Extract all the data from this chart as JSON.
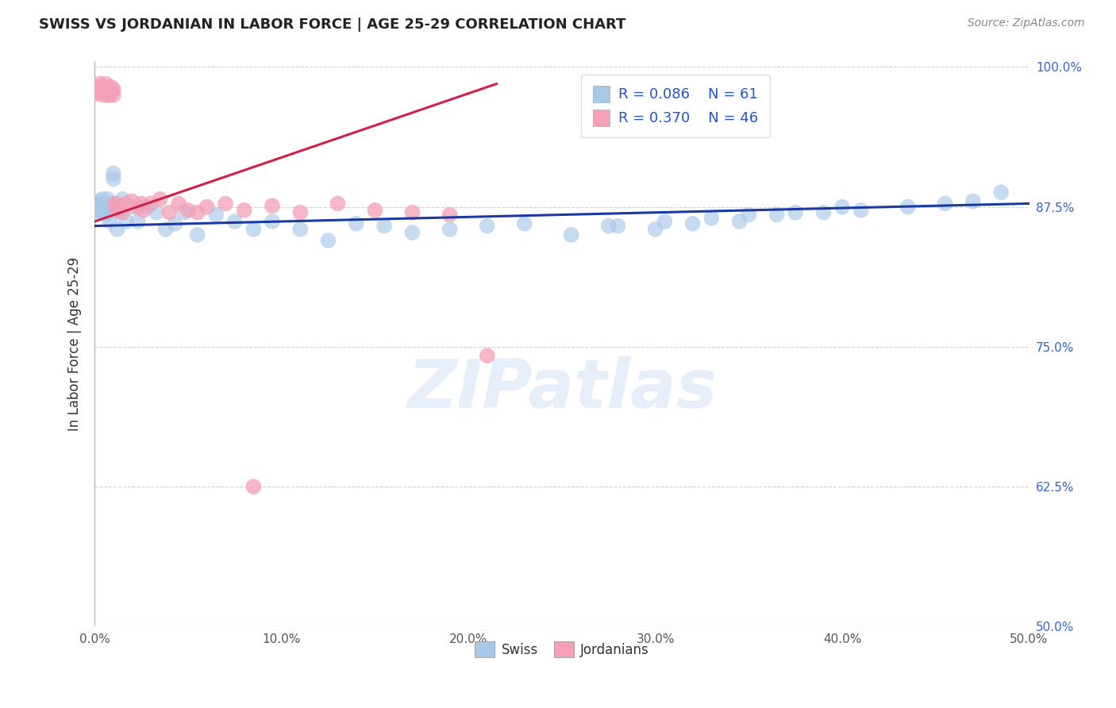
{
  "title": "SWISS VS JORDANIAN IN LABOR FORCE | AGE 25-29 CORRELATION CHART",
  "source": "Source: ZipAtlas.com",
  "ylabel": "In Labor Force | Age 25-29",
  "xlim": [
    0.0,
    0.5
  ],
  "ylim": [
    0.5,
    1.005
  ],
  "xticks": [
    0.0,
    0.1,
    0.2,
    0.3,
    0.4,
    0.5
  ],
  "xticklabels": [
    "0.0%",
    "10.0%",
    "20.0%",
    "30.0%",
    "40.0%",
    "50.0%"
  ],
  "yticks": [
    0.5,
    0.625,
    0.75,
    0.875,
    1.0
  ],
  "yticklabels": [
    "50.0%",
    "62.5%",
    "75.0%",
    "87.5%",
    "100.0%"
  ],
  "legend_r_swiss": "R = 0.086",
  "legend_n_swiss": "N = 61",
  "legend_r_jordan": "R = 0.370",
  "legend_n_jordan": "N = 46",
  "swiss_color": "#a8c8e8",
  "jordan_color": "#f4a0b8",
  "swiss_line_color": "#1a3a9f",
  "jordan_line_color": "#d0204a",
  "watermark": "ZIPatlas",
  "swiss_x": [
    0.001,
    0.002,
    0.002,
    0.003,
    0.003,
    0.004,
    0.004,
    0.005,
    0.005,
    0.006,
    0.006,
    0.007,
    0.007,
    0.008,
    0.008,
    0.009,
    0.01,
    0.01,
    0.011,
    0.012,
    0.013,
    0.015,
    0.017,
    0.02,
    0.023,
    0.028,
    0.033,
    0.038,
    0.043,
    0.048,
    0.055,
    0.065,
    0.075,
    0.085,
    0.095,
    0.11,
    0.125,
    0.14,
    0.155,
    0.17,
    0.19,
    0.21,
    0.23,
    0.255,
    0.275,
    0.3,
    0.32,
    0.345,
    0.365,
    0.39,
    0.41,
    0.435,
    0.455,
    0.47,
    0.485,
    0.28,
    0.305,
    0.33,
    0.35,
    0.375,
    0.4
  ],
  "swiss_y": [
    0.876,
    0.872,
    0.88,
    0.878,
    0.87,
    0.875,
    0.882,
    0.87,
    0.878,
    0.875,
    0.868,
    0.882,
    0.87,
    0.878,
    0.862,
    0.875,
    0.9,
    0.905,
    0.878,
    0.855,
    0.87,
    0.882,
    0.862,
    0.875,
    0.862,
    0.875,
    0.87,
    0.855,
    0.86,
    0.87,
    0.85,
    0.868,
    0.862,
    0.855,
    0.862,
    0.855,
    0.845,
    0.86,
    0.858,
    0.852,
    0.855,
    0.858,
    0.86,
    0.85,
    0.858,
    0.855,
    0.86,
    0.862,
    0.868,
    0.87,
    0.872,
    0.875,
    0.878,
    0.88,
    0.888,
    0.858,
    0.862,
    0.865,
    0.868,
    0.87,
    0.875
  ],
  "jordan_x": [
    0.001,
    0.001,
    0.002,
    0.002,
    0.003,
    0.003,
    0.004,
    0.004,
    0.005,
    0.005,
    0.006,
    0.006,
    0.007,
    0.007,
    0.008,
    0.008,
    0.009,
    0.009,
    0.01,
    0.01,
    0.011,
    0.012,
    0.013,
    0.015,
    0.017,
    0.02,
    0.023,
    0.026,
    0.03,
    0.035,
    0.04,
    0.045,
    0.05,
    0.06,
    0.07,
    0.08,
    0.095,
    0.11,
    0.13,
    0.15,
    0.17,
    0.19,
    0.21,
    0.085,
    0.055,
    0.025
  ],
  "jordan_y": [
    0.982,
    0.978,
    0.98,
    0.976,
    0.982,
    0.985,
    0.98,
    0.978,
    0.975,
    0.982,
    0.985,
    0.98,
    0.978,
    0.975,
    0.98,
    0.975,
    0.978,
    0.982,
    0.975,
    0.98,
    0.878,
    0.872,
    0.876,
    0.87,
    0.878,
    0.88,
    0.875,
    0.872,
    0.878,
    0.882,
    0.87,
    0.878,
    0.872,
    0.875,
    0.878,
    0.872,
    0.876,
    0.87,
    0.878,
    0.872,
    0.87,
    0.868,
    0.742,
    0.625,
    0.87,
    0.878
  ],
  "swiss_trend_x0": 0.0,
  "swiss_trend_x1": 0.5,
  "swiss_trend_y0": 0.858,
  "swiss_trend_y1": 0.878,
  "jordan_trend_x0": 0.0,
  "jordan_trend_x1": 0.215,
  "jordan_trend_y0": 0.862,
  "jordan_trend_y1": 0.985
}
